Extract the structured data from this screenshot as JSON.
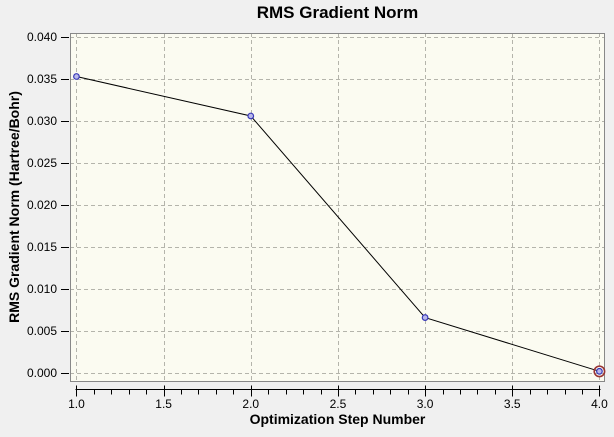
{
  "chart_data": {
    "type": "line",
    "title": "RMS Gradient Norm",
    "xlabel": "Optimization Step Number",
    "ylabel": "RMS Gradient Norm (Hartree/Bohr)",
    "x": [
      1,
      2,
      3,
      4
    ],
    "y": [
      0.0353,
      0.0306,
      0.0066,
      0.0002
    ],
    "xlim": [
      0.963,
      4.032
    ],
    "ylim": [
      -0.00107,
      0.04048
    ],
    "xticks": [
      1.0,
      1.5,
      2.0,
      2.5,
      3.0,
      3.5,
      4.0
    ],
    "xtick_labels": [
      "1.0",
      "1.5",
      "2.0",
      "2.5",
      "3.0",
      "3.5",
      "4.0"
    ],
    "x_minor_tick_step": 0.1,
    "yticks": [
      0.0,
      0.005,
      0.01,
      0.015,
      0.02,
      0.025,
      0.03,
      0.035,
      0.04
    ],
    "ytick_labels": [
      "0.000",
      "0.005",
      "0.010",
      "0.015",
      "0.020",
      "0.025",
      "0.030",
      "0.035",
      "0.040"
    ],
    "grid": true,
    "legend_position": "none",
    "highlight_last_point": true,
    "colors": {
      "page_bg": "#f0f0f0",
      "plot_bg": "#fbfbf1",
      "grid": "#b4b4ab",
      "frame": "#888888",
      "line": "#000000",
      "tick": "#000000",
      "text": "#000000",
      "marker_stroke": "#3939b8",
      "marker_fill": "#b9b9ea",
      "highlight_ring": "#993333"
    }
  }
}
